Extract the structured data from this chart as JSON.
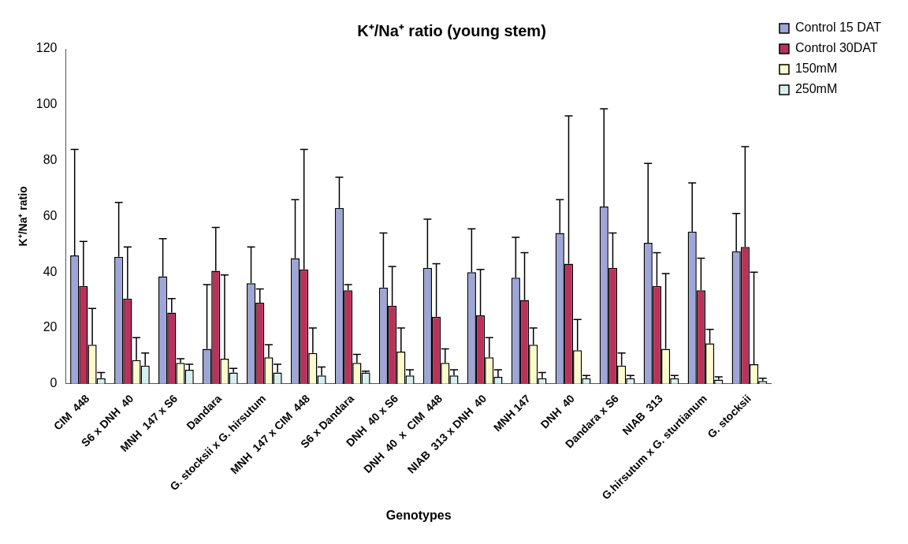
{
  "chart_data": {
    "type": "bar",
    "title": "K⁺/Na⁺ ratio (young stem)",
    "xlabel": "Genotypes",
    "ylabel": "K⁺/Na⁺ ratio",
    "categories": [
      "CIM  448",
      "S6 x DNH  40",
      "MNH  147 x S6",
      "Dandara",
      "G. stocksii x G. hirsutum",
      "MNH  147 x CIM  448",
      "S6 x Dandara",
      "DNH  40 x S6",
      "DNH  40  x  CIM  448",
      "NIAB  313 x DNH  40",
      "MNH 147",
      "DNH  40",
      "Dandara x S6",
      "NIAB  313",
      "G.hirsutum x G. sturtianum",
      "G. stocksii"
    ],
    "series": [
      {
        "name": "Control 15 DAT",
        "color": "#9ea6d8",
        "values": [
          46,
          45.5,
          38.5,
          12.5,
          36,
          45,
          63,
          34.5,
          41.5,
          40,
          38,
          54,
          63.5,
          50.5,
          54.5,
          47.5
        ],
        "errors": [
          [
            46,
            84
          ],
          [
            45.5,
            65
          ],
          [
            38.5,
            52
          ],
          [
            12.5,
            35.5
          ],
          [
            36,
            49
          ],
          [
            45,
            66
          ],
          [
            63,
            74
          ],
          [
            34.5,
            54
          ],
          [
            41.5,
            59
          ],
          [
            40,
            55.5
          ],
          [
            38,
            52.5
          ],
          [
            54,
            66
          ],
          [
            63.5,
            98.5
          ],
          [
            50.5,
            79
          ],
          [
            54.5,
            72
          ],
          [
            47.5,
            61
          ]
        ]
      },
      {
        "name": "Control 30DAT",
        "color": "#b8325a",
        "values": [
          35,
          30.5,
          25.5,
          40.5,
          29,
          41,
          33.5,
          28,
          24,
          24.5,
          30,
          43,
          41.5,
          35,
          33.5,
          49
        ],
        "errors": [
          [
            35,
            51
          ],
          [
            30.5,
            49
          ],
          [
            25.5,
            30.5
          ],
          [
            40.5,
            56
          ],
          [
            29,
            34
          ],
          [
            41,
            84
          ],
          [
            33.5,
            35.5
          ],
          [
            28,
            42
          ],
          [
            24,
            43
          ],
          [
            24.5,
            41
          ],
          [
            30,
            47
          ],
          [
            43,
            96
          ],
          [
            41.5,
            54
          ],
          [
            35,
            47
          ],
          [
            33.5,
            45
          ],
          [
            49,
            85
          ]
        ]
      },
      {
        "name": "150mM",
        "color": "#fbfbcc",
        "values": [
          14,
          8.5,
          7.5,
          9,
          9.5,
          11,
          7.5,
          11.5,
          7.5,
          9.5,
          14,
          12,
          6.5,
          12.5,
          14.5,
          7
        ],
        "errors": [
          [
            14,
            27
          ],
          [
            8.5,
            16.5
          ],
          [
            7.5,
            9
          ],
          [
            9,
            39
          ],
          [
            9.5,
            14
          ],
          [
            11,
            20
          ],
          [
            7.5,
            10.5
          ],
          [
            11.5,
            20
          ],
          [
            7.5,
            12.5
          ],
          [
            9.5,
            16.5
          ],
          [
            14,
            20
          ],
          [
            12,
            23
          ],
          [
            6.5,
            11
          ],
          [
            12.5,
            39.5
          ],
          [
            14.5,
            19.5
          ],
          [
            7,
            40
          ]
        ]
      },
      {
        "name": "250mM",
        "color": "#d6f0f0",
        "values": [
          2,
          6.5,
          5,
          4,
          4,
          3,
          4,
          3,
          3,
          2.5,
          2,
          2,
          2,
          2,
          1.5,
          1
        ],
        "errors": [
          [
            2,
            4
          ],
          [
            6.5,
            11
          ],
          [
            5,
            7
          ],
          [
            4,
            5.5
          ],
          [
            4,
            7
          ],
          [
            3,
            6
          ],
          [
            4,
            4.5
          ],
          [
            3,
            5
          ],
          [
            3,
            5
          ],
          [
            2.5,
            5
          ],
          [
            2,
            4
          ],
          [
            2,
            3
          ],
          [
            2,
            3
          ],
          [
            2,
            3
          ],
          [
            1.5,
            2.5
          ],
          [
            1,
            2
          ]
        ]
      }
    ],
    "ylim": [
      0,
      120
    ],
    "yticks": [
      0,
      20,
      40,
      60,
      80,
      100,
      120
    ],
    "grid": false,
    "legend": "top right"
  }
}
